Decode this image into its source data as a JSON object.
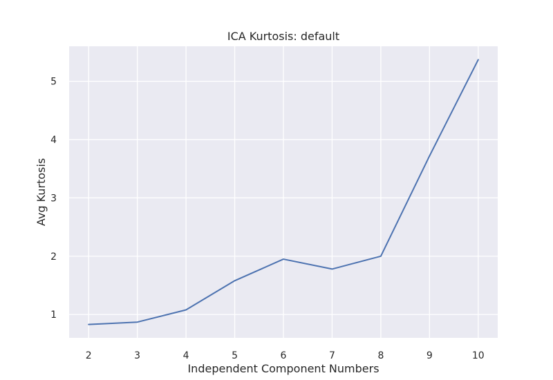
{
  "chart_data": {
    "type": "line",
    "title": "ICA Kurtosis: default",
    "xlabel": "Independent Component Numbers",
    "ylabel": "Avg Kurtosis",
    "x": [
      2,
      3,
      4,
      5,
      6,
      7,
      8,
      9,
      10
    ],
    "xticks": [
      2,
      3,
      4,
      5,
      6,
      7,
      8,
      9,
      10
    ],
    "yticks": [
      1,
      2,
      3,
      4,
      5
    ],
    "xlim": [
      1.6,
      10.4
    ],
    "ylim": [
      0.6,
      5.6
    ],
    "grid": true,
    "background_color": "#eaeaf2",
    "series": [
      {
        "color": "#4c72b0",
        "values": [
          0.83,
          0.87,
          1.08,
          1.58,
          1.95,
          1.78,
          2.0,
          3.72,
          5.37
        ]
      }
    ]
  }
}
